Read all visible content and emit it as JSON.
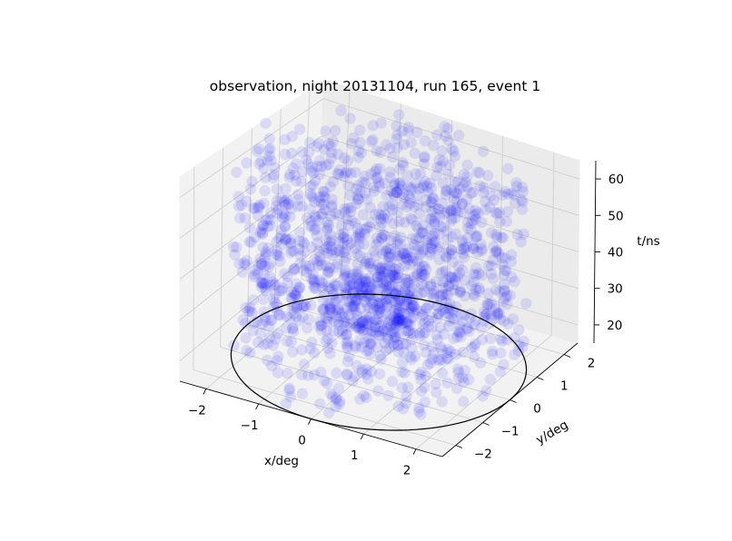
{
  "chart_data": {
    "type": "scatter",
    "projection": "3d",
    "title": "observation, night 20131104, run 165, event 1",
    "xlabel": "x/deg",
    "ylabel": "y/deg",
    "zlabel": "t/ns",
    "xlim": [
      -2.5,
      2.5
    ],
    "ylim": [
      -2.5,
      2.5
    ],
    "zlim": [
      15,
      65
    ],
    "xticks": [
      "−2",
      "−1",
      "0",
      "1",
      "2"
    ],
    "yticks": [
      "−2",
      "−1",
      "0",
      "1",
      "2"
    ],
    "zticks": [
      "20",
      "30",
      "40",
      "50",
      "60"
    ],
    "grid": true,
    "marker_color": "#0000ff",
    "marker_alpha": 0.1,
    "point_count": 1440,
    "point_distribution": "uniform in x, y within the circle; t uniform in [15, 65]; denser cluster near x=0, y=0, t≈30",
    "ellipse": {
      "center": [
        0,
        0
      ],
      "radius": 2.5,
      "z": 15,
      "color": "#000000"
    }
  }
}
